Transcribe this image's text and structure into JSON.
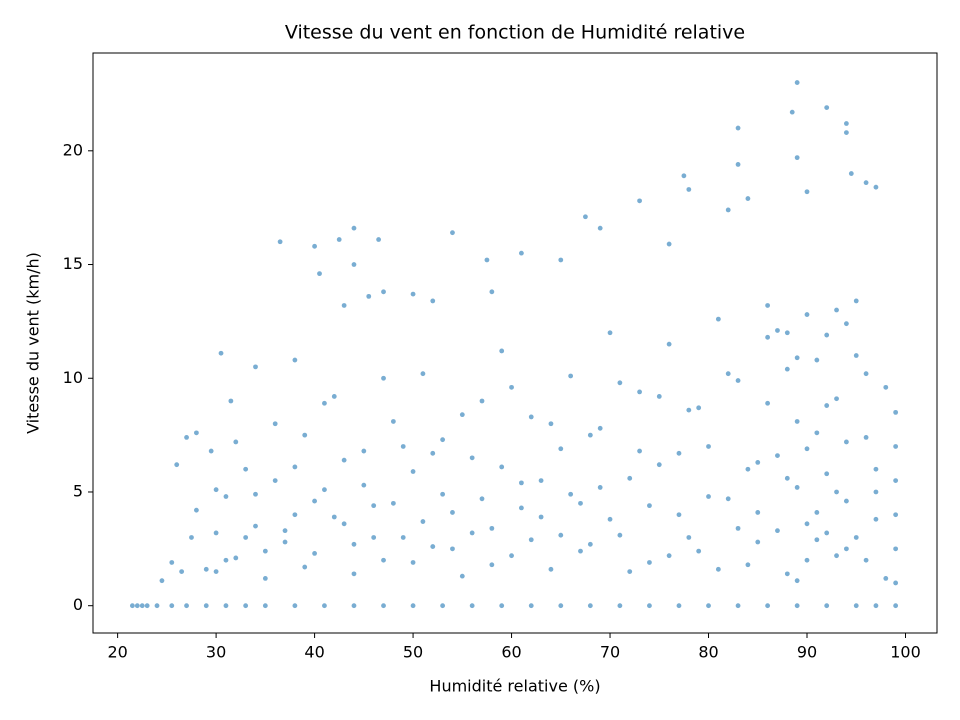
{
  "chart_data": {
    "type": "scatter",
    "title": "Vitesse du vent en fonction de Humidité relative",
    "x_label": "Humidité relative (%)",
    "y_label": "Vitesse du vent (km/h)",
    "color": "#1f77b4",
    "xlim": [
      17.5,
      103.2
    ],
    "ylim": [
      -1.2,
      24.3
    ],
    "xticks": [
      20,
      30,
      40,
      50,
      60,
      70,
      80,
      90,
      100
    ],
    "yticks": [
      0,
      5,
      10,
      15,
      20
    ],
    "x": [
      21.5,
      22,
      22.5,
      23,
      24,
      25.5,
      27,
      29,
      31,
      33,
      35,
      38,
      41,
      44,
      47,
      50,
      53,
      56,
      59,
      62,
      65,
      68,
      71,
      74,
      77,
      80,
      83,
      86,
      89,
      92,
      95,
      97,
      99,
      89,
      92,
      88.5,
      94,
      83,
      94,
      89,
      83,
      94.5,
      77.5,
      96,
      78,
      73,
      67.5,
      84,
      82,
      90,
      97,
      44,
      42.5,
      36.5,
      46.5,
      54,
      40,
      57.5,
      61,
      65,
      69,
      76,
      40.5,
      44,
      47,
      45.5,
      43,
      50,
      52,
      58,
      30.5,
      34,
      38,
      27,
      26,
      28,
      25.5,
      24.5,
      26.5,
      30,
      30,
      31,
      32,
      33,
      34,
      35,
      36,
      37,
      38,
      39,
      40,
      41,
      42,
      43,
      44,
      45,
      46,
      47,
      48,
      49,
      50,
      51,
      52,
      53,
      54,
      55,
      56,
      57,
      58,
      59,
      60,
      61,
      62,
      63,
      64,
      65,
      66,
      67,
      68,
      69,
      70,
      71,
      72,
      73,
      74,
      75,
      76,
      77,
      78,
      79,
      80,
      81,
      82,
      83,
      84,
      85,
      86,
      87,
      88,
      89,
      90,
      91,
      92,
      93,
      94,
      95,
      96,
      97,
      98,
      99,
      99,
      99,
      99,
      99,
      99,
      98,
      97,
      96,
      95,
      94,
      93,
      92,
      91,
      90,
      89,
      88,
      87,
      86,
      85,
      84,
      83,
      82,
      81,
      80,
      79,
      78,
      77,
      76,
      75,
      74,
      73,
      72,
      71,
      70,
      69,
      68,
      67,
      66,
      65,
      64,
      63,
      62,
      61,
      60,
      59,
      58,
      57,
      56,
      55,
      54,
      53,
      52,
      51,
      50,
      49,
      48,
      47,
      46,
      45,
      44,
      43,
      42,
      41,
      40,
      39,
      38,
      37,
      36,
      35,
      34,
      33,
      32,
      31,
      30,
      29,
      28,
      27.5,
      29.5,
      31.5,
      88,
      89,
      90,
      91,
      92,
      93,
      94,
      95,
      96,
      97,
      85,
      86,
      87,
      88,
      89,
      90,
      91,
      92,
      93,
      94
    ],
    "values": [
      0,
      0,
      0,
      0,
      0,
      0,
      0,
      0,
      0,
      0,
      0,
      0,
      0,
      0,
      0,
      0,
      0,
      0,
      0,
      0,
      0,
      0,
      0,
      0,
      0,
      0,
      0,
      0,
      0,
      0,
      0,
      0,
      0,
      23.0,
      21.9,
      21.7,
      21.2,
      21.0,
      20.8,
      19.7,
      19.4,
      19.0,
      18.9,
      18.6,
      18.3,
      17.8,
      17.1,
      17.9,
      17.4,
      18.2,
      18.4,
      16.6,
      16.1,
      16.0,
      16.1,
      16.4,
      15.8,
      15.2,
      15.5,
      15.2,
      16.6,
      15.9,
      14.6,
      15.0,
      13.8,
      13.6,
      13.2,
      13.7,
      13.4,
      13.8,
      11.1,
      10.5,
      10.8,
      7.4,
      6.2,
      7.6,
      1.9,
      1.1,
      1.5,
      3.2,
      1.5,
      4.8,
      2.1,
      6.0,
      3.5,
      1.2,
      5.5,
      2.8,
      4.0,
      7.5,
      2.3,
      5.1,
      9.2,
      3.6,
      1.4,
      6.8,
      4.4,
      2.0,
      8.1,
      3.0,
      5.9,
      10.2,
      2.6,
      7.3,
      4.1,
      1.3,
      6.5,
      9.0,
      3.4,
      11.2,
      2.2,
      5.4,
      8.3,
      3.9,
      1.6,
      6.9,
      10.1,
      4.5,
      2.7,
      7.8,
      12.0,
      3.1,
      5.6,
      9.4,
      1.9,
      6.2,
      11.5,
      4.0,
      8.6,
      2.4,
      7.0,
      12.6,
      4.7,
      9.9,
      1.8,
      6.3,
      13.2,
      3.3,
      10.4,
      5.2,
      12.8,
      2.9,
      8.8,
      13.0,
      4.6,
      11.0,
      7.4,
      3.8,
      9.6,
      1.0,
      2.5,
      4.0,
      5.5,
      7.0,
      8.5,
      1.2,
      5.0,
      2.0,
      3.0,
      7.2,
      2.2,
      5.8,
      10.8,
      3.6,
      8.1,
      1.4,
      6.6,
      11.8,
      2.8,
      6.0,
      3.4,
      10.2,
      1.6,
      4.8,
      8.7,
      3.0,
      6.7,
      2.2,
      9.2,
      4.4,
      6.8,
      1.5,
      9.8,
      3.8,
      5.2,
      7.5,
      2.4,
      4.9,
      3.1,
      8.0,
      5.5,
      2.9,
      4.3,
      9.6,
      6.1,
      1.8,
      4.7,
      3.2,
      8.4,
      2.5,
      4.9,
      6.7,
      3.7,
      1.9,
      7.0,
      4.5,
      10.0,
      3.0,
      5.3,
      2.7,
      6.4,
      3.9,
      8.9,
      4.6,
      1.7,
      6.1,
      3.3,
      8.0,
      2.4,
      4.9,
      3.0,
      7.2,
      2.0,
      5.1,
      1.6,
      4.2,
      3.0,
      6.8,
      9.0,
      12.0,
      1.1,
      6.9,
      4.1,
      11.9,
      9.1,
      2.5,
      13.4,
      10.2,
      6.0,
      4.1,
      8.9,
      12.1,
      5.6,
      10.9,
      2.0,
      7.6,
      3.2,
      5.0,
      12.4
    ]
  }
}
